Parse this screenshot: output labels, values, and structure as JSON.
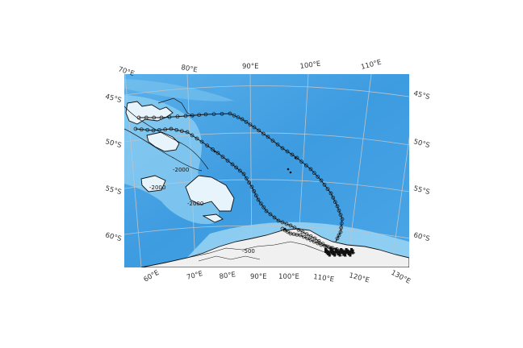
{
  "map": {
    "top_longitude_labels": [
      "70°E",
      "80°E",
      "90°E",
      "100°E",
      "110°E"
    ],
    "bottom_longitude_labels": [
      "60°E",
      "70°E",
      "80°E",
      "90°E",
      "100°E",
      "110°E",
      "120°E",
      "130°E"
    ],
    "left_latitude_labels": [
      "45°S",
      "50°S",
      "55°S",
      "60°S"
    ],
    "right_latitude_labels": [
      "45°S",
      "50°S",
      "55°S",
      "60°S"
    ],
    "contour_labels": [
      "-2000",
      "-2000",
      "-2000",
      "-500"
    ],
    "colors": {
      "ocean_deep": "#3d9be0",
      "ocean_shallow": "#8fd0f3",
      "land": "#f0f0f0",
      "ice_shelf": "#d8ecf8",
      "track": "#111111",
      "graticule": "#b9c4cc"
    }
  }
}
